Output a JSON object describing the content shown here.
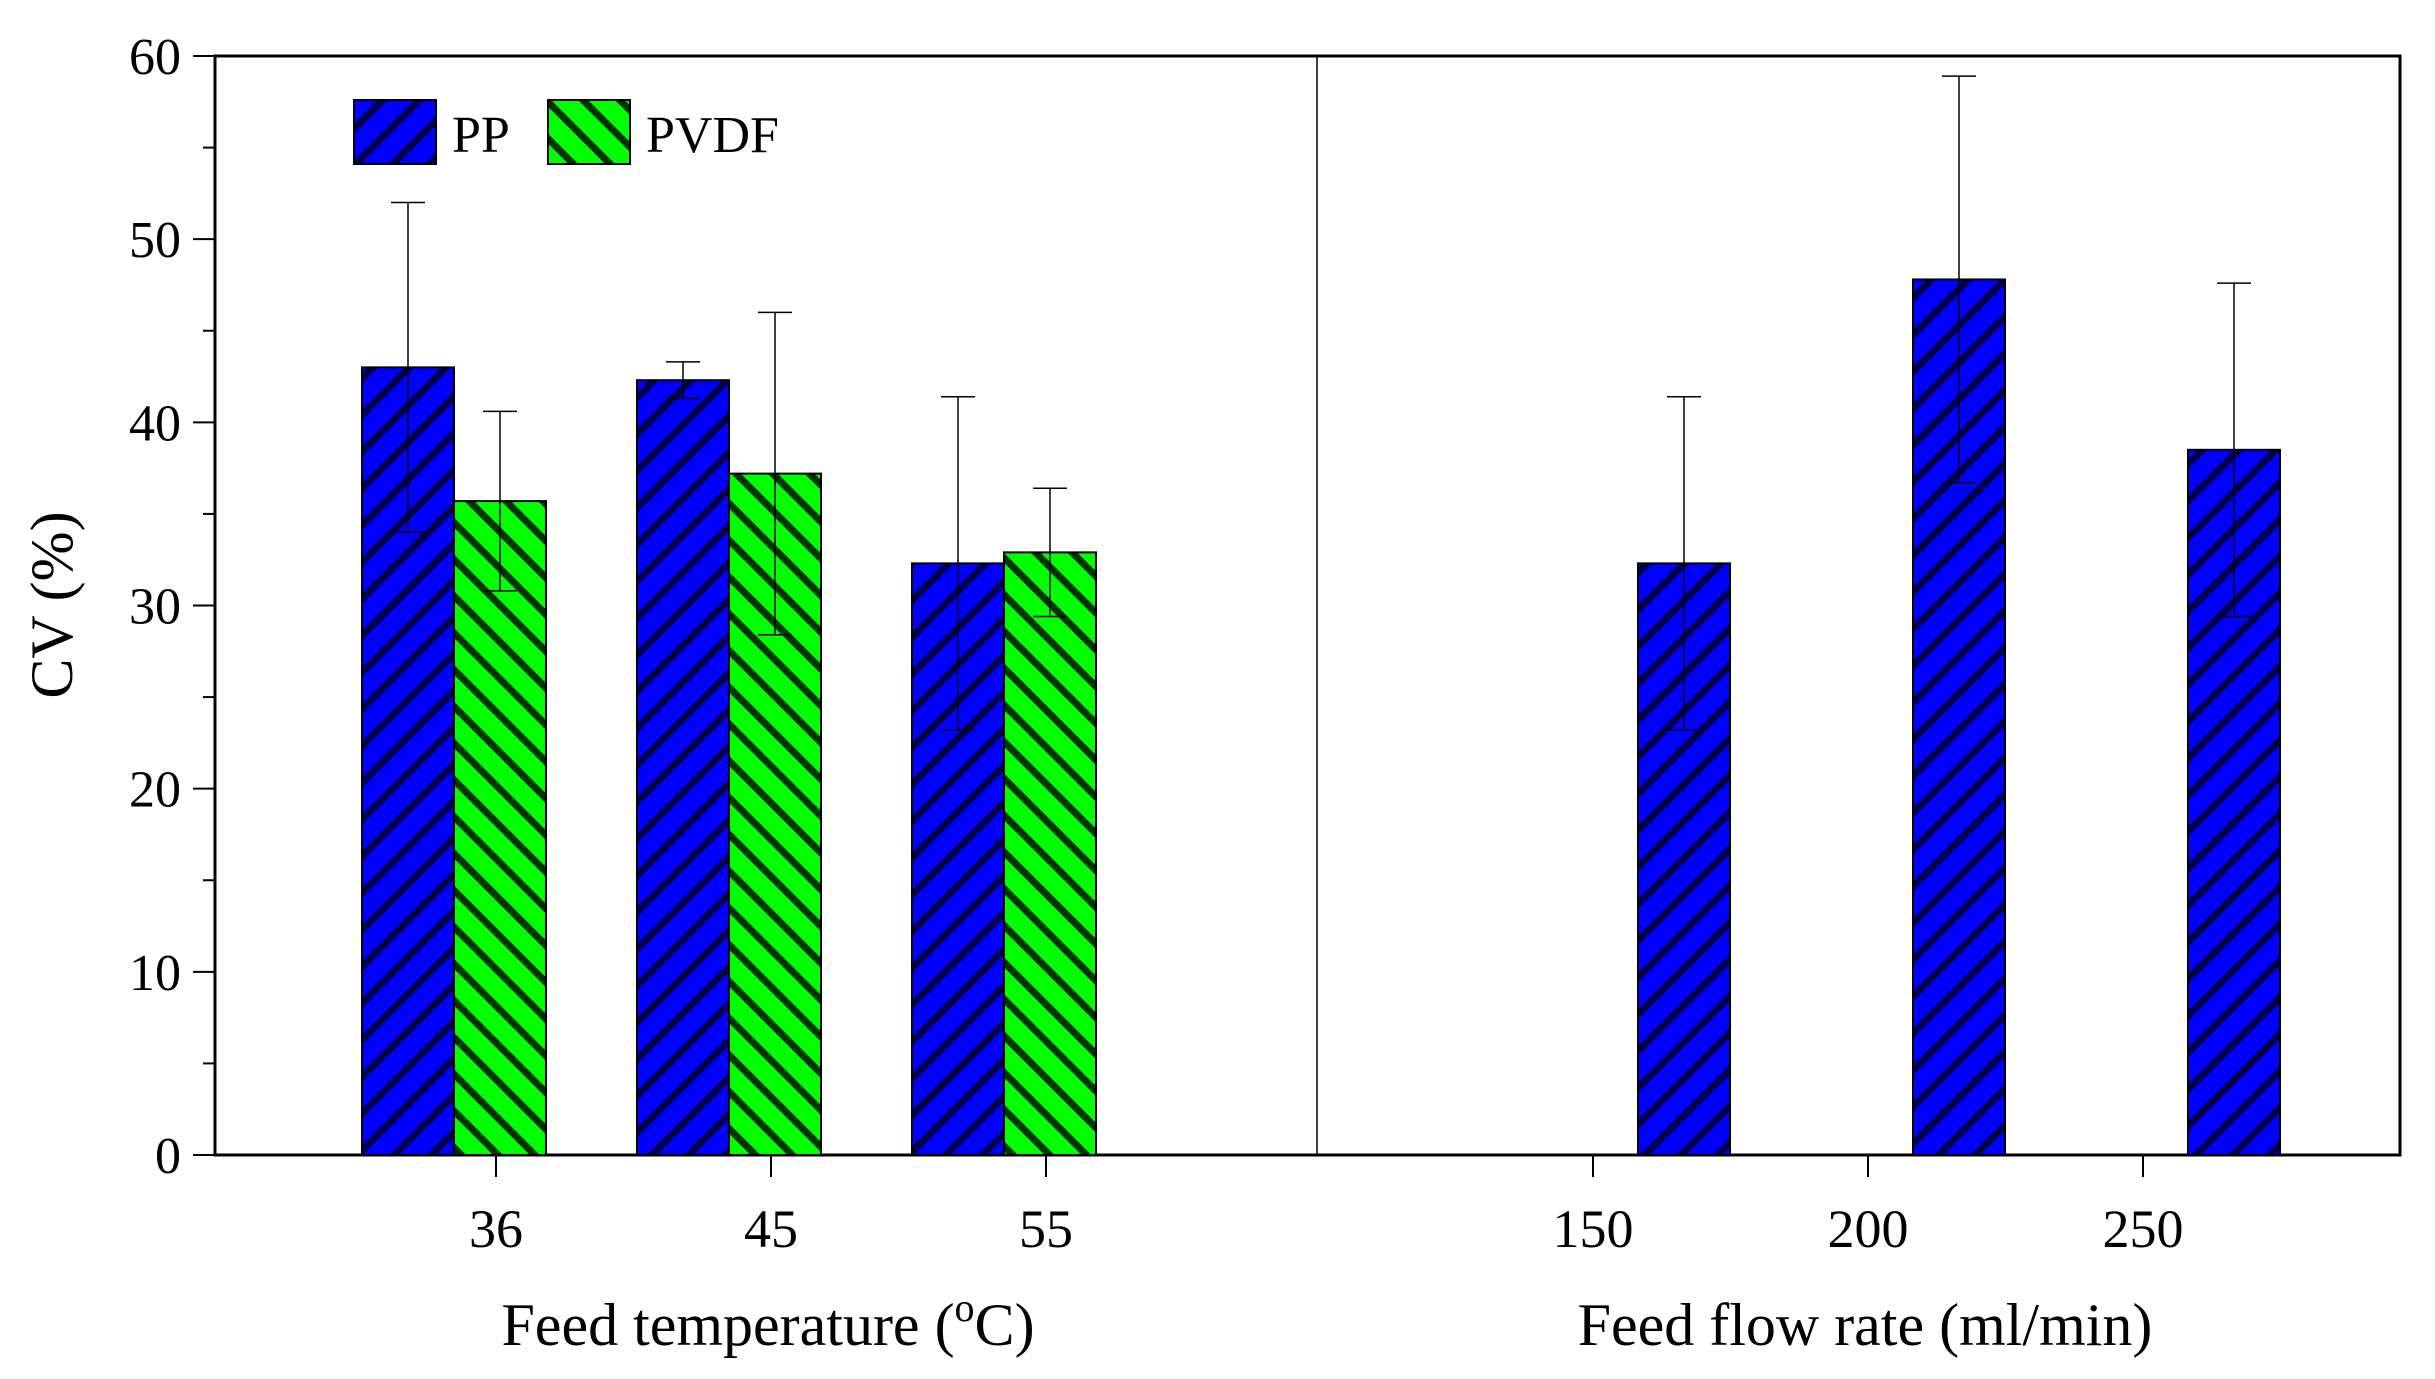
{
  "chart_data": {
    "type": "bar",
    "ylabel": "CV (%)",
    "ylim": [
      0,
      60
    ],
    "y_ticks": [
      "0",
      "10",
      "20",
      "30",
      "40",
      "50",
      "60"
    ],
    "legend": {
      "placement": "top-left",
      "entries": [
        {
          "name": "PP",
          "color": "#0000ff",
          "hatch": "forward-diagonal"
        },
        {
          "name": "PVDF",
          "color": "#00ff00",
          "hatch": "back-diagonal"
        }
      ]
    },
    "panels": [
      {
        "xlabel_main": "Feed temperature (",
        "xlabel_sup": "o",
        "xlabel_tail": "C)",
        "categories": [
          "36",
          "45",
          "55"
        ],
        "series": [
          {
            "name": "PP",
            "values": [
              43.0,
              42.3,
              32.3
            ],
            "errors": [
              9.0,
              1.0,
              9.1
            ]
          },
          {
            "name": "PVDF",
            "values": [
              35.7,
              37.2,
              32.9
            ],
            "errors": [
              4.9,
              8.8,
              3.5
            ]
          }
        ]
      },
      {
        "xlabel_main": "Feed flow rate (ml/min)",
        "xlabel_sup": "",
        "xlabel_tail": "",
        "categories": [
          "150",
          "200",
          "250"
        ],
        "series": [
          {
            "name": "PP",
            "values": [
              32.3,
              47.8,
              38.5
            ],
            "errors": [
              9.1,
              11.1,
              9.1
            ]
          }
        ]
      }
    ],
    "grid": false
  }
}
